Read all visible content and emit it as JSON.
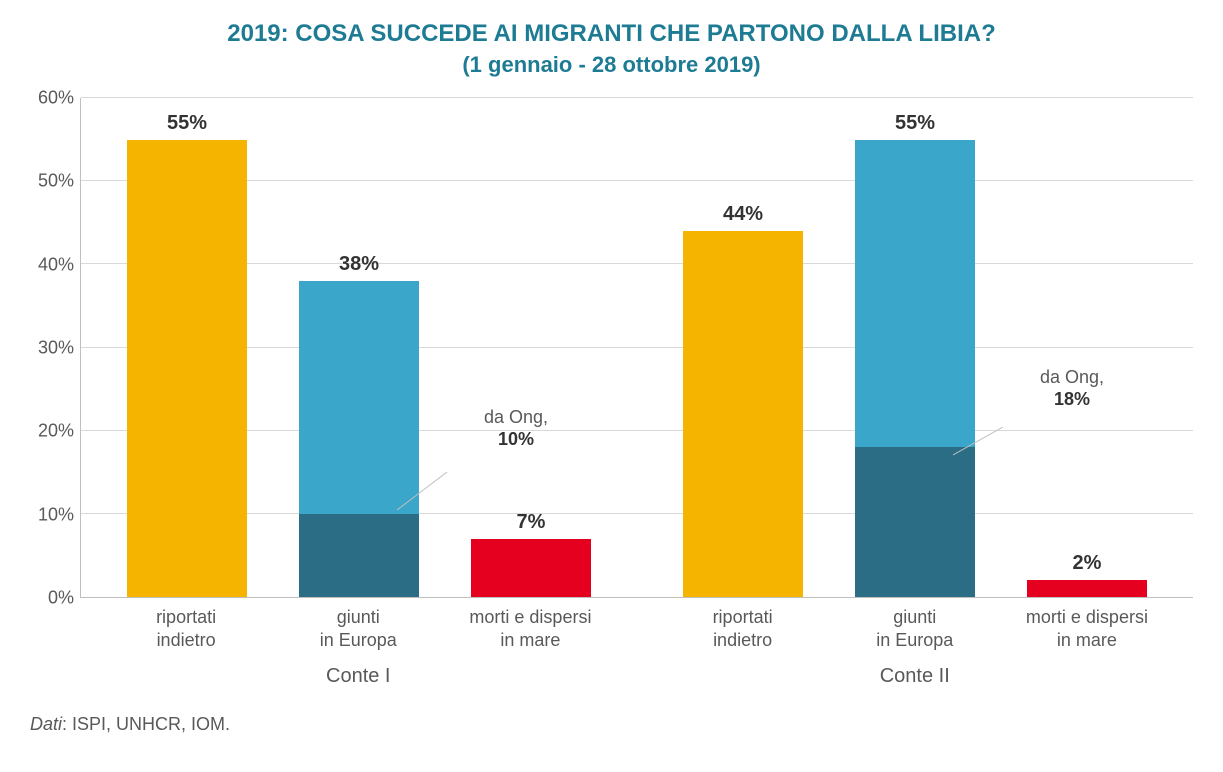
{
  "chart": {
    "type": "bar",
    "title": "2019: COSA SUCCEDE AI MIGRANTI CHE PARTONO DALLA LIBIA?",
    "subtitle": "(1 gennaio - 28 ottobre 2019)",
    "title_color": "#1e7b94",
    "title_fontsize": 24,
    "subtitle_fontsize": 22,
    "background_color": "#ffffff",
    "grid_color": "#d9d9d9",
    "axis_color": "#bfbfbf",
    "text_color": "#595959",
    "value_label_color": "#333333",
    "value_label_fontsize": 20,
    "axis_fontsize": 18,
    "ylim": [
      0,
      60
    ],
    "ytick_step": 10,
    "yticks": [
      "0%",
      "10%",
      "20%",
      "30%",
      "40%",
      "50%",
      "60%"
    ],
    "categories": [
      "riportati\nindietro",
      "giunti\nin Europa",
      "morti e dispersi\nin mare"
    ],
    "groups": [
      "Conte I",
      "Conte II"
    ],
    "colors": {
      "riportati": "#f5b400",
      "giunti_top": "#3aa6c9",
      "giunti_ong": "#2b6d84",
      "morti": "#e4001e"
    },
    "series": {
      "conte1": {
        "riportati": {
          "value": 55,
          "label": "55%"
        },
        "giunti": {
          "value": 38,
          "label": "38%",
          "ong_value": 10,
          "ong_label_prefix": "da Ong,",
          "ong_label_value": "10%"
        },
        "morti": {
          "value": 7,
          "label": "7%"
        }
      },
      "conte2": {
        "riportati": {
          "value": 44,
          "label": "44%"
        },
        "giunti": {
          "value": 55,
          "label": "55%",
          "ong_value": 18,
          "ong_label_prefix": "da Ong,",
          "ong_label_value": "18%"
        },
        "morti": {
          "value": 2,
          "label": "2%"
        }
      }
    },
    "source_prefix": "Dati",
    "source_text": ": ISPI, UNHCR, IOM."
  }
}
